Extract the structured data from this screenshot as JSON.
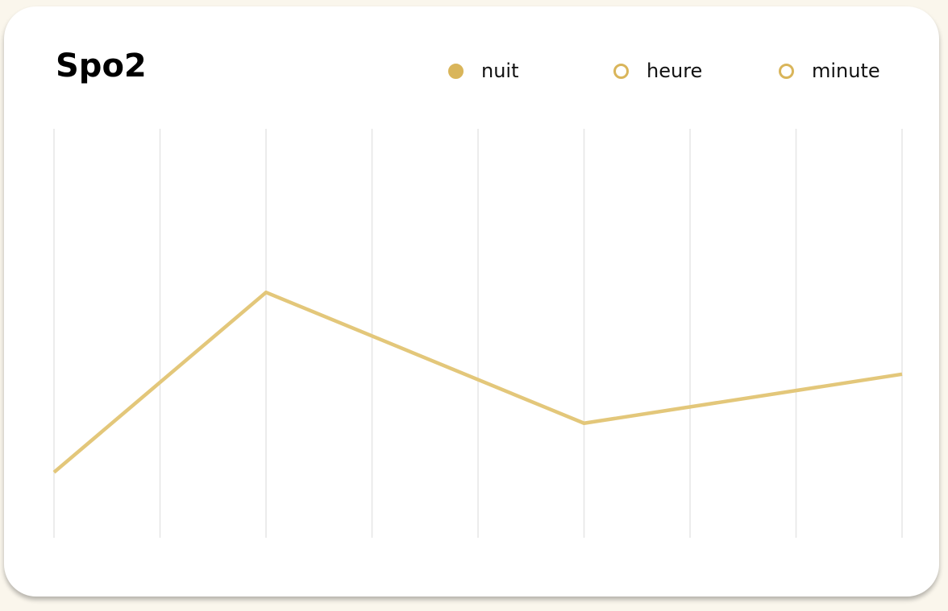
{
  "card": {
    "title": "Spo2"
  },
  "legend": [
    {
      "label": "nuit",
      "selected": true
    },
    {
      "label": "heure",
      "selected": false
    },
    {
      "label": "minute",
      "selected": false
    }
  ],
  "colors": {
    "accent": "#d9b55a",
    "line": "#e3c77a",
    "grid": "#e6e6e6",
    "background": "#faf6ec",
    "card": "#ffffff"
  },
  "chart_data": {
    "type": "line",
    "title": "",
    "xlabel": "",
    "ylabel": "",
    "x": [
      0,
      2,
      5,
      8
    ],
    "values": [
      0.16,
      0.6,
      0.28,
      0.4
    ],
    "xlim": [
      0,
      8
    ],
    "ylim": [
      0,
      1
    ],
    "grid": "vertical",
    "gridlines_x": [
      0,
      1,
      2,
      3,
      4,
      5,
      6,
      7,
      8
    ]
  }
}
